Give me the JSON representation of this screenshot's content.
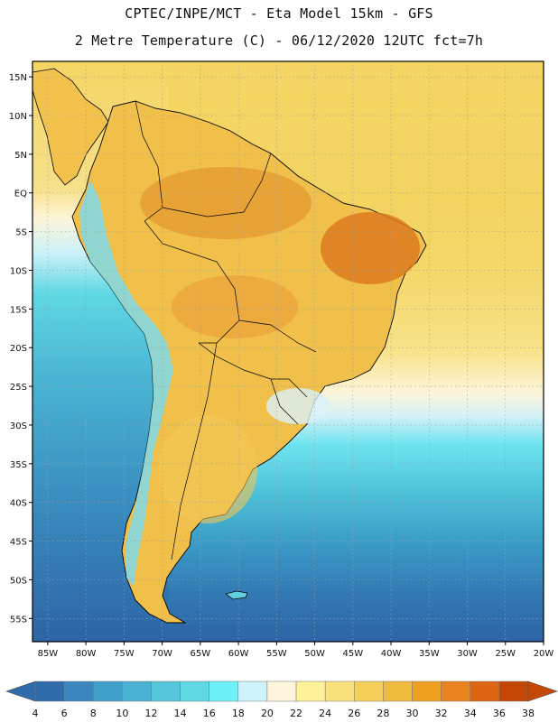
{
  "header": {
    "line1": "CPTEC/INPE/MCT -  Eta Model 15km - GFS",
    "line2": "2 Metre Temperature (C) - 06/12/2020 12UTC fct=7h"
  },
  "map": {
    "lon_range": [
      -87,
      -20
    ],
    "lat_range": [
      -58,
      17
    ],
    "lat_labels": [
      "15N",
      "10N",
      "5N",
      "EQ",
      "5S",
      "10S",
      "15S",
      "20S",
      "25S",
      "30S",
      "35S",
      "40S",
      "45S",
      "50S",
      "55S"
    ],
    "lat_values": [
      15,
      10,
      5,
      0,
      -5,
      -10,
      -15,
      -20,
      -25,
      -30,
      -35,
      -40,
      -45,
      -50,
      -55
    ],
    "lon_labels": [
      "85W",
      "80W",
      "75W",
      "70W",
      "65W",
      "60W",
      "55W",
      "50W",
      "45W",
      "40W",
      "35W",
      "30W",
      "25W",
      "20W"
    ],
    "lon_values": [
      -85,
      -80,
      -75,
      -70,
      -65,
      -60,
      -55,
      -50,
      -45,
      -40,
      -35,
      -30,
      -25,
      -20
    ]
  },
  "colorbar": {
    "labels": [
      "4",
      "6",
      "8",
      "10",
      "12",
      "14",
      "16",
      "18",
      "20",
      "22",
      "24",
      "26",
      "28",
      "30",
      "32",
      "34",
      "36",
      "38"
    ],
    "colors": [
      "#2f6aab",
      "#3a86bd",
      "#3f9fc8",
      "#49b2d2",
      "#56c6da",
      "#5fd8e3",
      "#6df0f7",
      "#cff3fa",
      "#fff6dd",
      "#fdf19a",
      "#f8e07a",
      "#f4cf5a",
      "#efbb3e",
      "#f0a020",
      "#e98320",
      "#dd6410",
      "#c34806"
    ],
    "left_arrow_color": "#2f6aab",
    "right_arrow_color": "#c34806"
  }
}
